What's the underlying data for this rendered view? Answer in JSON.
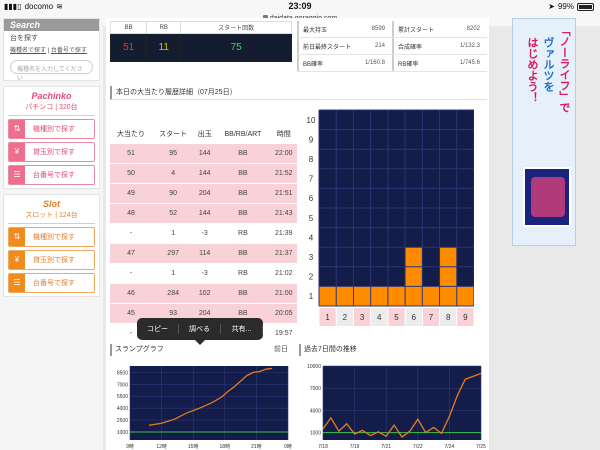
{
  "status_bar": {
    "carrier": "docomo",
    "time": "23:09",
    "battery": "99%"
  },
  "url": "daidata.goraggio.com",
  "sidebar": {
    "search_title": "Search",
    "search_sub": "台を探す",
    "search_links": [
      "機種名で探す",
      "台番号で探す"
    ],
    "search_placeholder": "機種名を入力してください",
    "pachinko_title": "Pachinko",
    "pachinko_sub": "パチンコ | 320台",
    "pachinko_buttons": [
      "機種別で探す",
      "貸玉別で探す",
      "台番号で探す"
    ],
    "slot_title": "Slot",
    "slot_sub": "スロット | 124台",
    "slot_buttons": [
      "機種別で探す",
      "貸玉別で探す",
      "台番号で探す"
    ]
  },
  "summary": {
    "headers": [
      "BB",
      "RB",
      "スタート回数"
    ],
    "values": [
      "51",
      "11",
      "75"
    ],
    "colors": [
      "#e8334a",
      "#d9c300",
      "#40d060"
    ]
  },
  "stats": [
    [
      {
        "label": "最大持玉",
        "value": "8599"
      },
      {
        "label": "累計スタート",
        "value": "8202"
      }
    ],
    [
      {
        "label": "前日最終スタート",
        "value": "214"
      },
      {
        "label": "合成確率",
        "value": "1/132.3"
      }
    ],
    [
      {
        "label": "BB確率",
        "value": "1/160.8"
      },
      {
        "label": "RB確率",
        "value": "1/745.6"
      }
    ]
  ],
  "history_title": "本日の大当たり履歴詳細（07月25日）",
  "history": {
    "headers": [
      "大当たり",
      "スタート",
      "出玉",
      "BB/RB/ART",
      "時間"
    ],
    "rows": [
      [
        "51",
        "95",
        "144",
        "BB",
        "22:00"
      ],
      [
        "50",
        "4",
        "144",
        "BB",
        "21:52"
      ],
      [
        "49",
        "90",
        "204",
        "BB",
        "21:51"
      ],
      [
        "48",
        "52",
        "144",
        "BB",
        "21:43"
      ],
      [
        "-",
        "1",
        "-3",
        "RB",
        "21:39"
      ],
      [
        "47",
        "297",
        "114",
        "BB",
        "21:37"
      ],
      [
        "-",
        "1",
        "-3",
        "RB",
        "21:02"
      ],
      [
        "46",
        "284",
        "102",
        "BB",
        "21:00"
      ],
      [
        "45",
        "93",
        "204",
        "BB",
        "20:05"
      ],
      [
        "-",
        "459",
        "-3",
        "RB",
        "19:57"
      ]
    ],
    "row_types": [
      "bb",
      "bb",
      "bb",
      "bb",
      "rb",
      "bb",
      "rb",
      "bb",
      "bb",
      "rb"
    ]
  },
  "popup": {
    "items": [
      "コピー",
      "調べる",
      "共有..."
    ]
  },
  "slump_title": "スランプグラフ",
  "slump_prev": "前日",
  "week_title": "過去7日間の推移",
  "ad": {
    "line1": "「ノーライフ」で",
    "line2": "ヴァルツを",
    "line3": "はじめよう！"
  },
  "chart_data": [
    {
      "type": "bar",
      "categories": [
        "1",
        "2",
        "3",
        "4",
        "5",
        "6",
        "7",
        "8",
        "9"
      ],
      "values": [
        1,
        1,
        1,
        1,
        1,
        3,
        1,
        3,
        1
      ],
      "ylim": [
        0,
        10
      ],
      "yticks": [
        1,
        2,
        3,
        4,
        5,
        6,
        7,
        8,
        9,
        10
      ],
      "colors": {
        "bar": "#ff8c00",
        "grid_bg": "#141c4a"
      }
    },
    {
      "type": "line",
      "x": [
        "9時",
        "12時",
        "15時",
        "18時",
        "21時",
        "0時"
      ],
      "yticks": [
        1000,
        2500,
        4000,
        5500,
        7000,
        8500
      ],
      "ytick_labels": [
        "1000",
        "2500",
        "4000",
        "5500",
        "7000",
        "8500"
      ],
      "series": [
        {
          "points": [
            [
              0.12,
              1850
            ],
            [
              0.2,
              2100
            ],
            [
              0.28,
              2600
            ],
            [
              0.36,
              3400
            ],
            [
              0.44,
              4000
            ],
            [
              0.52,
              4700
            ],
            [
              0.58,
              5400
            ],
            [
              0.62,
              6100
            ],
            [
              0.66,
              6700
            ],
            [
              0.7,
              7400
            ],
            [
              0.74,
              8100
            ],
            [
              0.78,
              8500
            ],
            [
              0.82,
              8600
            ],
            [
              0.86,
              8900
            ],
            [
              0.9,
              9000
            ]
          ],
          "color": "#e57c1f"
        }
      ],
      "colors": {
        "bg": "#141c4a"
      }
    },
    {
      "type": "line",
      "x": [
        "7/18",
        "7/19",
        "7/21",
        "7/22",
        "7/24",
        "7/25"
      ],
      "yticks": [
        1000,
        4000,
        7000,
        10000
      ],
      "ytick_labels": [
        "1000",
        "4000",
        "7000",
        "10000"
      ],
      "series": [
        {
          "points": [
            [
              0.0,
              1500
            ],
            [
              0.05,
              3000
            ],
            [
              0.1,
              1200
            ],
            [
              0.15,
              2200
            ],
            [
              0.2,
              800
            ],
            [
              0.25,
              1300
            ],
            [
              0.3,
              600
            ],
            [
              0.35,
              1100
            ],
            [
              0.4,
              500
            ],
            [
              0.45,
              2000
            ],
            [
              0.5,
              400
            ],
            [
              0.55,
              1200
            ],
            [
              0.6,
              2800
            ],
            [
              0.65,
              1000
            ],
            [
              0.7,
              1700
            ],
            [
              0.75,
              900
            ],
            [
              0.8,
              3200
            ],
            [
              0.85,
              6000
            ],
            [
              0.9,
              8200
            ],
            [
              0.95,
              8600
            ],
            [
              1.0,
              9000
            ]
          ],
          "color": "#e57c1f"
        }
      ],
      "colors": {
        "bg": "#141c4a"
      }
    }
  ]
}
